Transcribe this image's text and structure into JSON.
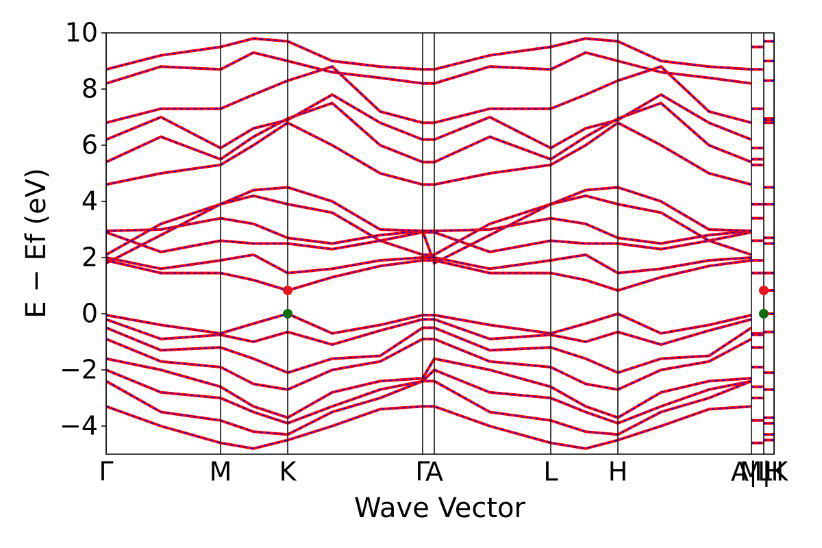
{
  "chart_data": {
    "type": "line",
    "xlabel": "Wave Vector",
    "ylabel": "E − Ef (eV)",
    "xlim": [
      0,
      9.75
    ],
    "ylim": [
      -5,
      10
    ],
    "yticks": [
      {
        "value": -4,
        "label": "−4"
      },
      {
        "value": -2,
        "label": "−2"
      },
      0,
      2,
      4,
      6,
      8,
      10
    ],
    "xticks": [
      {
        "value": 0,
        "label": "Γ"
      },
      {
        "value": 1.67,
        "label": "M"
      },
      {
        "value": 2.65,
        "label": "K"
      },
      {
        "value": 4.62,
        "label": "Γ"
      },
      {
        "value": 4.79,
        "label": "A"
      },
      {
        "value": 6.49,
        "label": "L"
      },
      {
        "value": 7.47,
        "label": "H"
      },
      {
        "value": 9.42,
        "label": "A|L"
      },
      {
        "value": 9.6,
        "label": "M|K"
      },
      {
        "value": 9.75,
        "label": "H"
      }
    ],
    "line_color": "#ff0000",
    "dash_color": "#0000ff",
    "x": [
      0,
      0.8,
      1.67,
      2.15,
      2.65,
      3.3,
      4.0,
      4.62,
      4.79,
      5.6,
      6.49,
      7.0,
      7.47,
      8.1,
      8.8,
      9.42,
      9.42,
      9.42,
      9.6,
      9.6,
      9.6,
      9.75
    ],
    "series": [
      {
        "values": [
          1.9,
          1.45,
          1.45,
          1.2,
          0.83,
          1.3,
          1.7,
          1.9,
          1.9,
          1.45,
          1.45,
          1.2,
          0.83,
          1.3,
          1.7,
          1.9,
          null,
          1.45,
          1.45,
          null,
          0.83,
          0.83
        ]
      },
      {
        "values": [
          2.0,
          1.6,
          1.9,
          2.1,
          1.45,
          1.6,
          1.9,
          2.0,
          2.0,
          1.6,
          1.9,
          2.1,
          1.45,
          1.6,
          1.9,
          2.0,
          null,
          1.9,
          1.9,
          null,
          1.45,
          1.45
        ]
      },
      {
        "values": [
          2.9,
          2.2,
          2.6,
          2.5,
          2.5,
          2.3,
          2.6,
          2.9,
          2.9,
          2.2,
          2.6,
          2.5,
          2.5,
          2.3,
          2.6,
          2.9,
          null,
          2.6,
          2.6,
          null,
          2.5,
          2.5
        ]
      },
      {
        "values": [
          2.95,
          3.0,
          3.4,
          3.2,
          2.7,
          2.5,
          2.8,
          2.95,
          2.95,
          3.0,
          3.4,
          3.2,
          2.7,
          2.5,
          2.8,
          2.95,
          null,
          3.4,
          3.4,
          null,
          2.7,
          2.7
        ]
      },
      {
        "values": [
          2.1,
          3.2,
          3.9,
          4.2,
          3.9,
          3.6,
          2.6,
          2.1,
          2.1,
          3.2,
          3.9,
          4.2,
          3.9,
          3.6,
          2.6,
          2.1,
          null,
          3.9,
          3.9,
          null,
          3.9,
          3.9
        ]
      },
      {
        "values": [
          1.8,
          2.8,
          3.9,
          4.4,
          4.5,
          4.0,
          3.0,
          2.95,
          1.8,
          2.8,
          3.9,
          4.4,
          4.5,
          4.0,
          3.0,
          2.95,
          null,
          3.9,
          3.9,
          null,
          4.5,
          4.5
        ]
      },
      {
        "values": [
          4.6,
          5.0,
          5.3,
          6.0,
          6.8,
          6.0,
          5.0,
          4.6,
          4.6,
          5.0,
          5.3,
          6.0,
          6.8,
          6.0,
          5.0,
          4.6,
          null,
          5.3,
          5.3,
          null,
          6.8,
          6.8
        ]
      },
      {
        "values": [
          5.4,
          6.3,
          5.5,
          6.3,
          6.95,
          7.5,
          6.0,
          5.4,
          5.4,
          6.3,
          5.5,
          6.3,
          6.95,
          7.5,
          6.0,
          5.4,
          null,
          5.5,
          5.5,
          null,
          6.95,
          6.95
        ]
      },
      {
        "values": [
          6.2,
          7.0,
          5.9,
          6.6,
          6.9,
          7.8,
          6.8,
          6.2,
          6.2,
          7.0,
          5.9,
          6.6,
          6.9,
          7.8,
          6.8,
          6.2,
          null,
          5.9,
          5.9,
          null,
          6.9,
          6.9
        ]
      },
      {
        "values": [
          6.8,
          7.3,
          7.3,
          7.8,
          8.3,
          8.8,
          7.2,
          6.8,
          6.8,
          7.3,
          7.3,
          7.8,
          8.3,
          8.8,
          7.2,
          6.8,
          null,
          7.3,
          7.3,
          null,
          8.3,
          8.3
        ]
      },
      {
        "values": [
          8.2,
          8.8,
          8.7,
          9.3,
          9.0,
          8.6,
          8.4,
          8.2,
          8.2,
          8.8,
          8.7,
          9.3,
          9.0,
          8.6,
          8.4,
          8.2,
          null,
          8.7,
          8.7,
          null,
          9.0,
          9.0
        ]
      },
      {
        "values": [
          8.7,
          9.2,
          9.5,
          9.8,
          9.7,
          9.0,
          8.8,
          8.7,
          8.7,
          9.2,
          9.5,
          9.8,
          9.7,
          9.0,
          8.8,
          8.7,
          null,
          9.5,
          9.5,
          null,
          9.7,
          9.7
        ]
      },
      {
        "values": [
          -0.05,
          -0.4,
          -0.7,
          -0.35,
          0,
          -0.7,
          -0.4,
          -0.05,
          -0.05,
          -0.4,
          -0.7,
          -0.35,
          0,
          -0.7,
          -0.4,
          -0.05,
          null,
          -0.7,
          -0.7,
          null,
          0,
          0
        ]
      },
      {
        "values": [
          -0.2,
          -0.9,
          -0.75,
          -1.0,
          -0.65,
          -1.1,
          -0.6,
          -0.2,
          -0.2,
          -0.9,
          -0.75,
          -1.0,
          -0.65,
          -1.1,
          -0.6,
          -0.2,
          null,
          -0.75,
          -0.75,
          null,
          -0.65,
          -0.65
        ]
      },
      {
        "values": [
          -0.5,
          -1.3,
          -1.2,
          -1.6,
          -2.1,
          -1.6,
          -1.5,
          -0.5,
          -0.5,
          -1.3,
          -1.2,
          -1.6,
          -2.1,
          -1.6,
          -1.5,
          -0.5,
          null,
          -1.2,
          -1.2,
          null,
          -2.1,
          -2.1
        ]
      },
      {
        "values": [
          -0.9,
          -1.7,
          -1.9,
          -2.5,
          -2.7,
          -2.0,
          -1.7,
          -0.9,
          -0.9,
          -1.7,
          -1.9,
          -2.5,
          -2.7,
          -2.0,
          -1.7,
          -0.9,
          null,
          -1.9,
          -1.9,
          null,
          -2.7,
          -2.7
        ]
      },
      {
        "values": [
          -1.6,
          -2.0,
          -2.6,
          -3.3,
          -3.7,
          -2.8,
          -2.4,
          -2.3,
          -1.6,
          -2.0,
          -2.6,
          -3.3,
          -3.7,
          -2.8,
          -2.4,
          -2.3,
          null,
          -2.6,
          -2.6,
          null,
          -3.7,
          -3.7
        ]
      },
      {
        "values": [
          -2.0,
          -2.8,
          -3.0,
          -3.5,
          -3.9,
          -3.3,
          -2.7,
          -2.4,
          -2.0,
          -2.8,
          -3.0,
          -3.5,
          -3.9,
          -3.3,
          -2.7,
          -2.4,
          null,
          -3.0,
          -3.0,
          null,
          -3.9,
          -3.9
        ]
      },
      {
        "values": [
          -2.4,
          -3.5,
          -3.8,
          -4.2,
          -4.3,
          -3.5,
          -3.0,
          -2.4,
          -2.4,
          -3.5,
          -3.8,
          -4.2,
          -4.3,
          -3.5,
          -3.0,
          -2.4,
          null,
          -3.8,
          -3.8,
          null,
          -4.3,
          -4.3
        ]
      },
      {
        "values": [
          -3.3,
          -4.0,
          -4.6,
          -4.8,
          -4.5,
          -4.0,
          -3.4,
          -3.3,
          -3.3,
          -4.0,
          -4.6,
          -4.8,
          -4.5,
          -4.0,
          -3.4,
          -3.3,
          null,
          -4.6,
          -4.6,
          null,
          -4.5,
          -4.5
        ]
      }
    ],
    "points": [
      {
        "x": 2.65,
        "y": 0.83,
        "color": "#e8141e"
      },
      {
        "x": 2.65,
        "y": 0,
        "color": "#0b6e0b"
      },
      {
        "x": 9.6,
        "y": 0.83,
        "color": "#e8141e"
      },
      {
        "x": 9.6,
        "y": 0,
        "color": "#0b6e0b"
      }
    ]
  }
}
